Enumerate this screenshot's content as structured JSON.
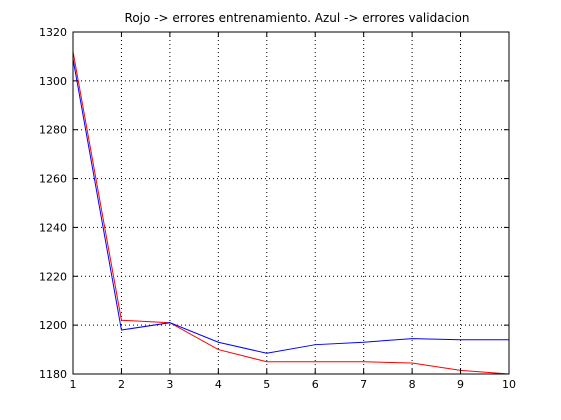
{
  "chart_data": {
    "type": "line",
    "title": "Rojo -> errores entrenamiento. Azul -> errores validacion",
    "xlabel": "",
    "ylabel": "",
    "x": [
      1,
      2,
      3,
      4,
      5,
      6,
      7,
      8,
      9,
      10
    ],
    "xlim": [
      1,
      10
    ],
    "ylim": [
      1180,
      1320
    ],
    "xticks": [
      "1",
      "2",
      "3",
      "4",
      "5",
      "6",
      "7",
      "8",
      "9",
      "10"
    ],
    "yticks": [
      "1180",
      "1200",
      "1220",
      "1240",
      "1260",
      "1280",
      "1300",
      "1320"
    ],
    "grid": true,
    "legend": "none",
    "series": [
      {
        "color": "#ff0000",
        "values": [
          1312,
          1202,
          1201,
          1190,
          1185,
          1185,
          1185,
          1184.5,
          1181.5,
          1180
        ]
      },
      {
        "color": "#0000ff",
        "values": [
          1309,
          1198,
          1201,
          1193,
          1188.5,
          1192,
          1193,
          1194.5,
          1194,
          1194
        ]
      }
    ]
  }
}
